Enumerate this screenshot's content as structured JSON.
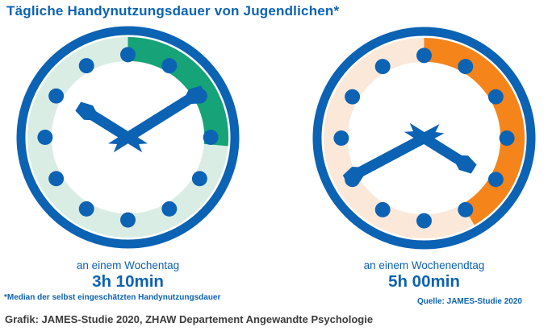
{
  "title": "Tägliche Handynutzungsdauer von Jugendlichen*",
  "footnote": "*Median der selbst eingeschätzten Handynutzungsdauer",
  "source": "Quelle: JAMES-Studie 2020",
  "credit": "Grafik: JAMES-Studie 2020, ZHAW Departement Angewandte Psychologie",
  "colors": {
    "blue": "#0c62b3",
    "green": "#16a377",
    "light_green": "#d9ede4",
    "orange": "#f5841a",
    "light_orange": "#fbe8d9",
    "credit_text": "#3b3b3b"
  },
  "clocks": [
    {
      "label": "an einem Wochentag",
      "value": "3h 10min",
      "arc_deg": 95,
      "arc_color": "green",
      "band_color": "light_green",
      "minute_deg": 58,
      "hour_deg": 302
    },
    {
      "label": "an einem Wochenendtag",
      "value": "5h 00min",
      "arc_deg": 150,
      "arc_color": "orange",
      "band_color": "light_orange",
      "minute_deg": 242,
      "hour_deg": 122
    }
  ],
  "chart_data": {
    "type": "pie",
    "title": "Tägliche Handynutzungsdauer von Jugendlichen*",
    "subtitle_note": "*Median der selbst eingeschätzten Handynutzungsdauer",
    "categories": [
      "an einem Wochentag",
      "an einem Wochenendtag"
    ],
    "value_labels": [
      "3h 10min",
      "5h 00min"
    ],
    "values_hours": [
      3.17,
      5.0
    ],
    "arc_fraction_of_12h_dial": [
      0.264,
      0.417
    ],
    "arc_degrees": [
      95,
      150
    ],
    "colors": [
      "#16a377",
      "#f5841a"
    ],
    "source": "Quelle: JAMES-Studie 2020",
    "legend_position": "none",
    "grid": false
  }
}
